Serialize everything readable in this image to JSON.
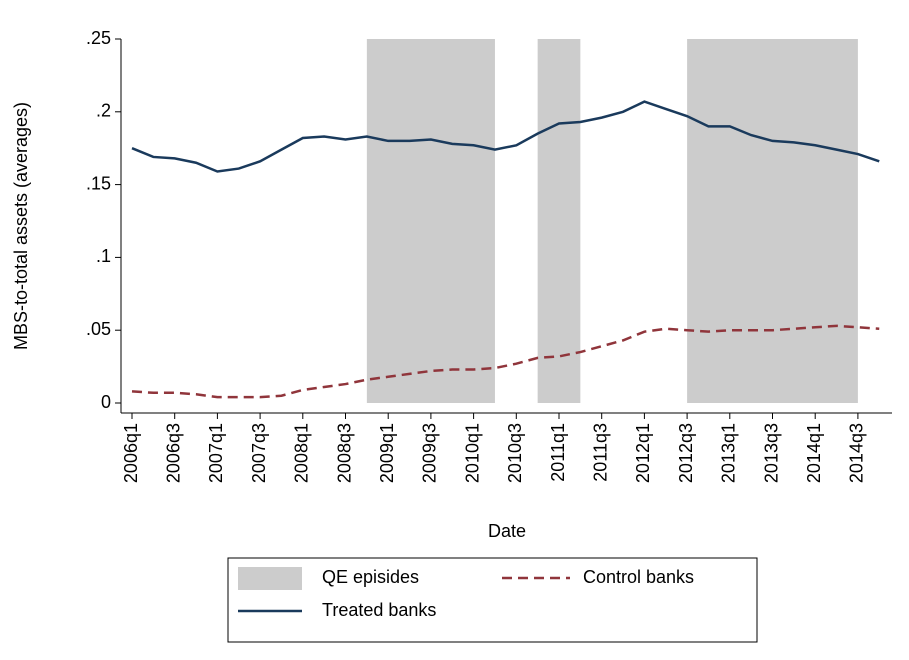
{
  "chart_data": {
    "type": "line",
    "x_label": "Date",
    "y_label": "MBS-to-total assets (averages)",
    "categories": [
      "2006q1",
      null,
      "2006q3",
      null,
      "2007q1",
      null,
      "2007q3",
      null,
      "2008q1",
      null,
      "2008q3",
      null,
      "2009q1",
      null,
      "2009q3",
      null,
      "2010q1",
      null,
      "2010q3",
      null,
      "2011q1",
      null,
      "2011q3",
      null,
      "2012q1",
      null,
      "2012q3",
      null,
      "2013q1",
      null,
      "2013q3",
      null,
      "2014q1",
      null,
      "2014q3",
      null
    ],
    "series": [
      {
        "name": "QE episides",
        "type": "area",
        "color": "#cccccc",
        "values": [
          null,
          null,
          null,
          null,
          null,
          null,
          null,
          null,
          null,
          null,
          null,
          0.25,
          0.25,
          0.25,
          0.25,
          0.25,
          0.25,
          0.25,
          null,
          0.25,
          0.25,
          0.25,
          null,
          null,
          null,
          null,
          0.25,
          0.25,
          0.25,
          0.25,
          0.25,
          0.25,
          0.25,
          0.25,
          0.25,
          null
        ]
      },
      {
        "name": "Control banks",
        "type": "line",
        "color": "#90353b",
        "line_style": "dashed",
        "values": [
          0.008,
          0.007,
          0.007,
          0.006,
          0.004,
          0.004,
          0.004,
          0.005,
          0.009,
          0.011,
          0.013,
          0.016,
          0.018,
          0.02,
          0.022,
          0.023,
          0.023,
          0.024,
          0.027,
          0.031,
          0.032,
          0.035,
          0.039,
          0.043,
          0.049,
          0.051,
          0.05,
          0.049,
          0.05,
          0.05,
          0.05,
          0.051,
          0.052,
          0.053,
          0.052,
          0.051
        ]
      },
      {
        "name": "Treated banks",
        "type": "line",
        "color": "#1a3a5c",
        "line_style": "solid",
        "values": [
          0.175,
          0.169,
          0.168,
          0.165,
          0.159,
          0.161,
          0.166,
          0.174,
          0.182,
          0.183,
          0.181,
          0.183,
          0.18,
          0.18,
          0.181,
          0.178,
          0.177,
          0.174,
          0.177,
          0.185,
          0.192,
          0.193,
          0.196,
          0.2,
          0.207,
          0.202,
          0.197,
          0.19,
          0.19,
          0.184,
          0.18,
          0.179,
          0.177,
          0.174,
          0.171,
          0.166
        ]
      }
    ],
    "ylim": [
      0,
      0.25
    ],
    "yticks": [
      0,
      {
        "value": 0.05,
        "label": ".05"
      },
      {
        "value": 0.1,
        "label": ".1"
      },
      {
        "value": 0.15,
        "label": ".15"
      },
      {
        "value": 0.2,
        "label": ".2"
      },
      {
        "value": 0.25,
        "label": ".25"
      }
    ],
    "grid": false
  }
}
